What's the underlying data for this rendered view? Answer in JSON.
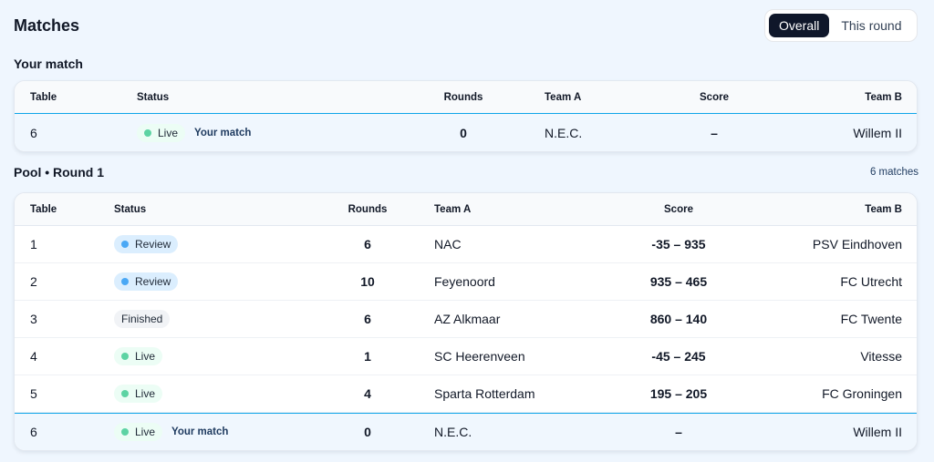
{
  "title": "Matches",
  "toggle": {
    "overall": "Overall",
    "this_round": "This round",
    "selected": "Overall"
  },
  "your_match_section": {
    "label": "Your match",
    "headers": {
      "table": "Table",
      "status": "Status",
      "rounds": "Rounds",
      "team_a": "Team A",
      "score": "Score",
      "team_b": "Team B"
    },
    "row": {
      "table": "6",
      "status": "Live",
      "tag": "Your match",
      "rounds": "0",
      "team_a": "N.E.C.",
      "score": "–",
      "team_b": "Willem II"
    }
  },
  "pool": {
    "label": "Pool • Round 1",
    "count": "6 matches",
    "headers": {
      "table": "Table",
      "status": "Status",
      "rounds": "Rounds",
      "team_a": "Team A",
      "score": "Score",
      "team_b": "Team B"
    },
    "rows": [
      {
        "table": "1",
        "status": "Review",
        "rounds": "6",
        "team_a": "NAC",
        "score": "-35 – 935",
        "team_b": "PSV Eindhoven"
      },
      {
        "table": "2",
        "status": "Review",
        "rounds": "10",
        "team_a": "Feyenoord",
        "score": "935 – 465",
        "team_b": "FC Utrecht"
      },
      {
        "table": "3",
        "status": "Finished",
        "rounds": "6",
        "team_a": "AZ Alkmaar",
        "score": "860 – 140",
        "team_b": "FC Twente"
      },
      {
        "table": "4",
        "status": "Live",
        "rounds": "1",
        "team_a": "SC Heerenveen",
        "score": "-45 – 245",
        "team_b": "Vitesse"
      },
      {
        "table": "5",
        "status": "Live",
        "rounds": "4",
        "team_a": "Sparta Rotterdam",
        "score": "195 – 205",
        "team_b": "FC Groningen"
      },
      {
        "table": "6",
        "status": "Live",
        "tag": "Your match",
        "rounds": "0",
        "team_a": "N.E.C.",
        "score": "–",
        "team_b": "Willem II"
      }
    ]
  },
  "colors": {
    "live": "#5dd3a3",
    "review": "#4aa8f5",
    "accent": "#0ea5e9",
    "toggle_active": "#0f172a"
  }
}
